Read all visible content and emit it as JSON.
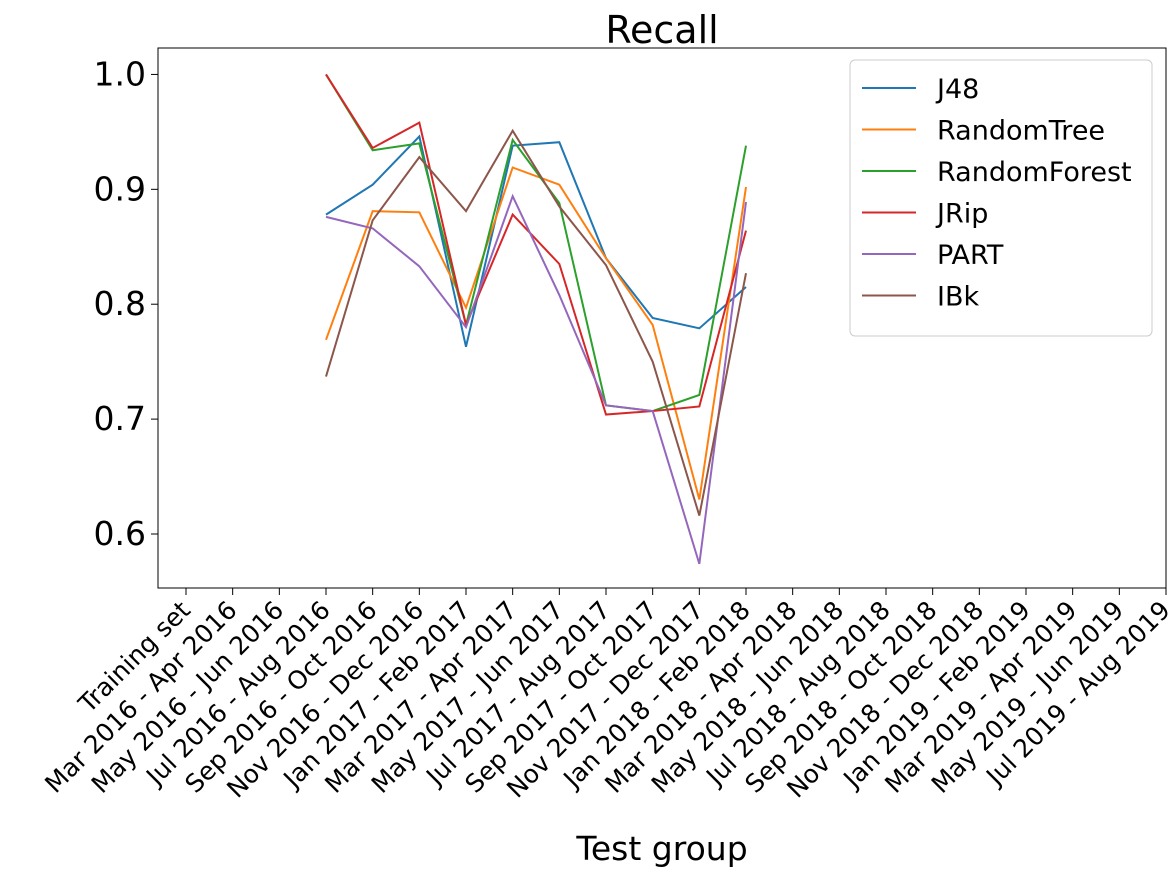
{
  "chart_data": {
    "type": "line",
    "title": "Recall",
    "xlabel": "Test group",
    "categories": [
      "Training set",
      "Mar 2016 - Apr 2016",
      "May 2016 - Jun 2016",
      "Jul 2016 - Aug 2016",
      "Sep 2016 - Oct 2016",
      "Nov 2016 - Dec 2016",
      "Jan 2017 - Feb 2017",
      "Mar 2017 - Apr 2017",
      "May 2017 - Jun 2017",
      "Jul 2017 - Aug 2017",
      "Sep 2017 - Oct 2017",
      "Nov 2017 - Dec 2017",
      "Jan 2018 - Feb 2018",
      "Mar 2018 - Apr 2018",
      "May 2018 - Jun 2018",
      "Jul 2018 - Aug 2018",
      "Sep 2018 - Oct 2018",
      "Nov 2018 - Dec 2018",
      "Jan 2019 - Feb 2019",
      "Mar 2019 - Apr 2019",
      "May 2019 - Jun 2019",
      "Jul 2019 - Aug 2019"
    ],
    "series": [
      {
        "name": "J48",
        "color": "#1f77b4",
        "values": [
          null,
          null,
          null,
          0.878,
          0.904,
          0.946,
          0.763,
          0.938,
          0.941,
          0.84,
          0.788,
          0.779,
          0.815,
          null,
          null,
          null,
          null,
          null,
          null,
          null,
          null,
          null
        ]
      },
      {
        "name": "RandomTree",
        "color": "#ff7f0e",
        "values": [
          null,
          null,
          null,
          0.769,
          0.881,
          0.88,
          0.797,
          0.919,
          0.904,
          0.84,
          0.782,
          0.63,
          0.902,
          null,
          null,
          null,
          null,
          null,
          null,
          null,
          null,
          null
        ]
      },
      {
        "name": "RandomForest",
        "color": "#2ca02c",
        "values": [
          null,
          null,
          null,
          1.0,
          0.934,
          0.94,
          0.782,
          0.943,
          0.888,
          0.712,
          0.707,
          0.721,
          0.938,
          null,
          null,
          null,
          null,
          null,
          null,
          null,
          null,
          null
        ]
      },
      {
        "name": "JRip",
        "color": "#d62728",
        "values": [
          null,
          null,
          null,
          1.0,
          0.936,
          0.958,
          0.782,
          0.878,
          0.835,
          0.704,
          0.707,
          0.711,
          0.864,
          null,
          null,
          null,
          null,
          null,
          null,
          null,
          null,
          null
        ]
      },
      {
        "name": "PART",
        "color": "#9467bd",
        "values": [
          null,
          null,
          null,
          0.876,
          0.866,
          0.833,
          0.78,
          0.894,
          0.808,
          0.712,
          0.707,
          0.574,
          0.889,
          null,
          null,
          null,
          null,
          null,
          null,
          null,
          null,
          null
        ]
      },
      {
        "name": "IBk",
        "color": "#8c564b",
        "values": [
          null,
          null,
          null,
          0.737,
          0.873,
          0.928,
          0.881,
          0.951,
          0.885,
          0.834,
          0.75,
          0.616,
          0.827,
          null,
          null,
          null,
          null,
          null,
          null,
          null,
          null,
          null
        ]
      }
    ],
    "ylim": [
      0.553,
      1.023
    ],
    "yticks": [
      {
        "value": 0.6,
        "label": "0.6"
      },
      {
        "value": 0.7,
        "label": "0.7"
      },
      {
        "value": 0.8,
        "label": "0.8"
      },
      {
        "value": 0.9,
        "label": "0.9"
      },
      {
        "value": 1.0,
        "label": "1.0"
      }
    ],
    "grid": false,
    "legend": "upper right"
  }
}
